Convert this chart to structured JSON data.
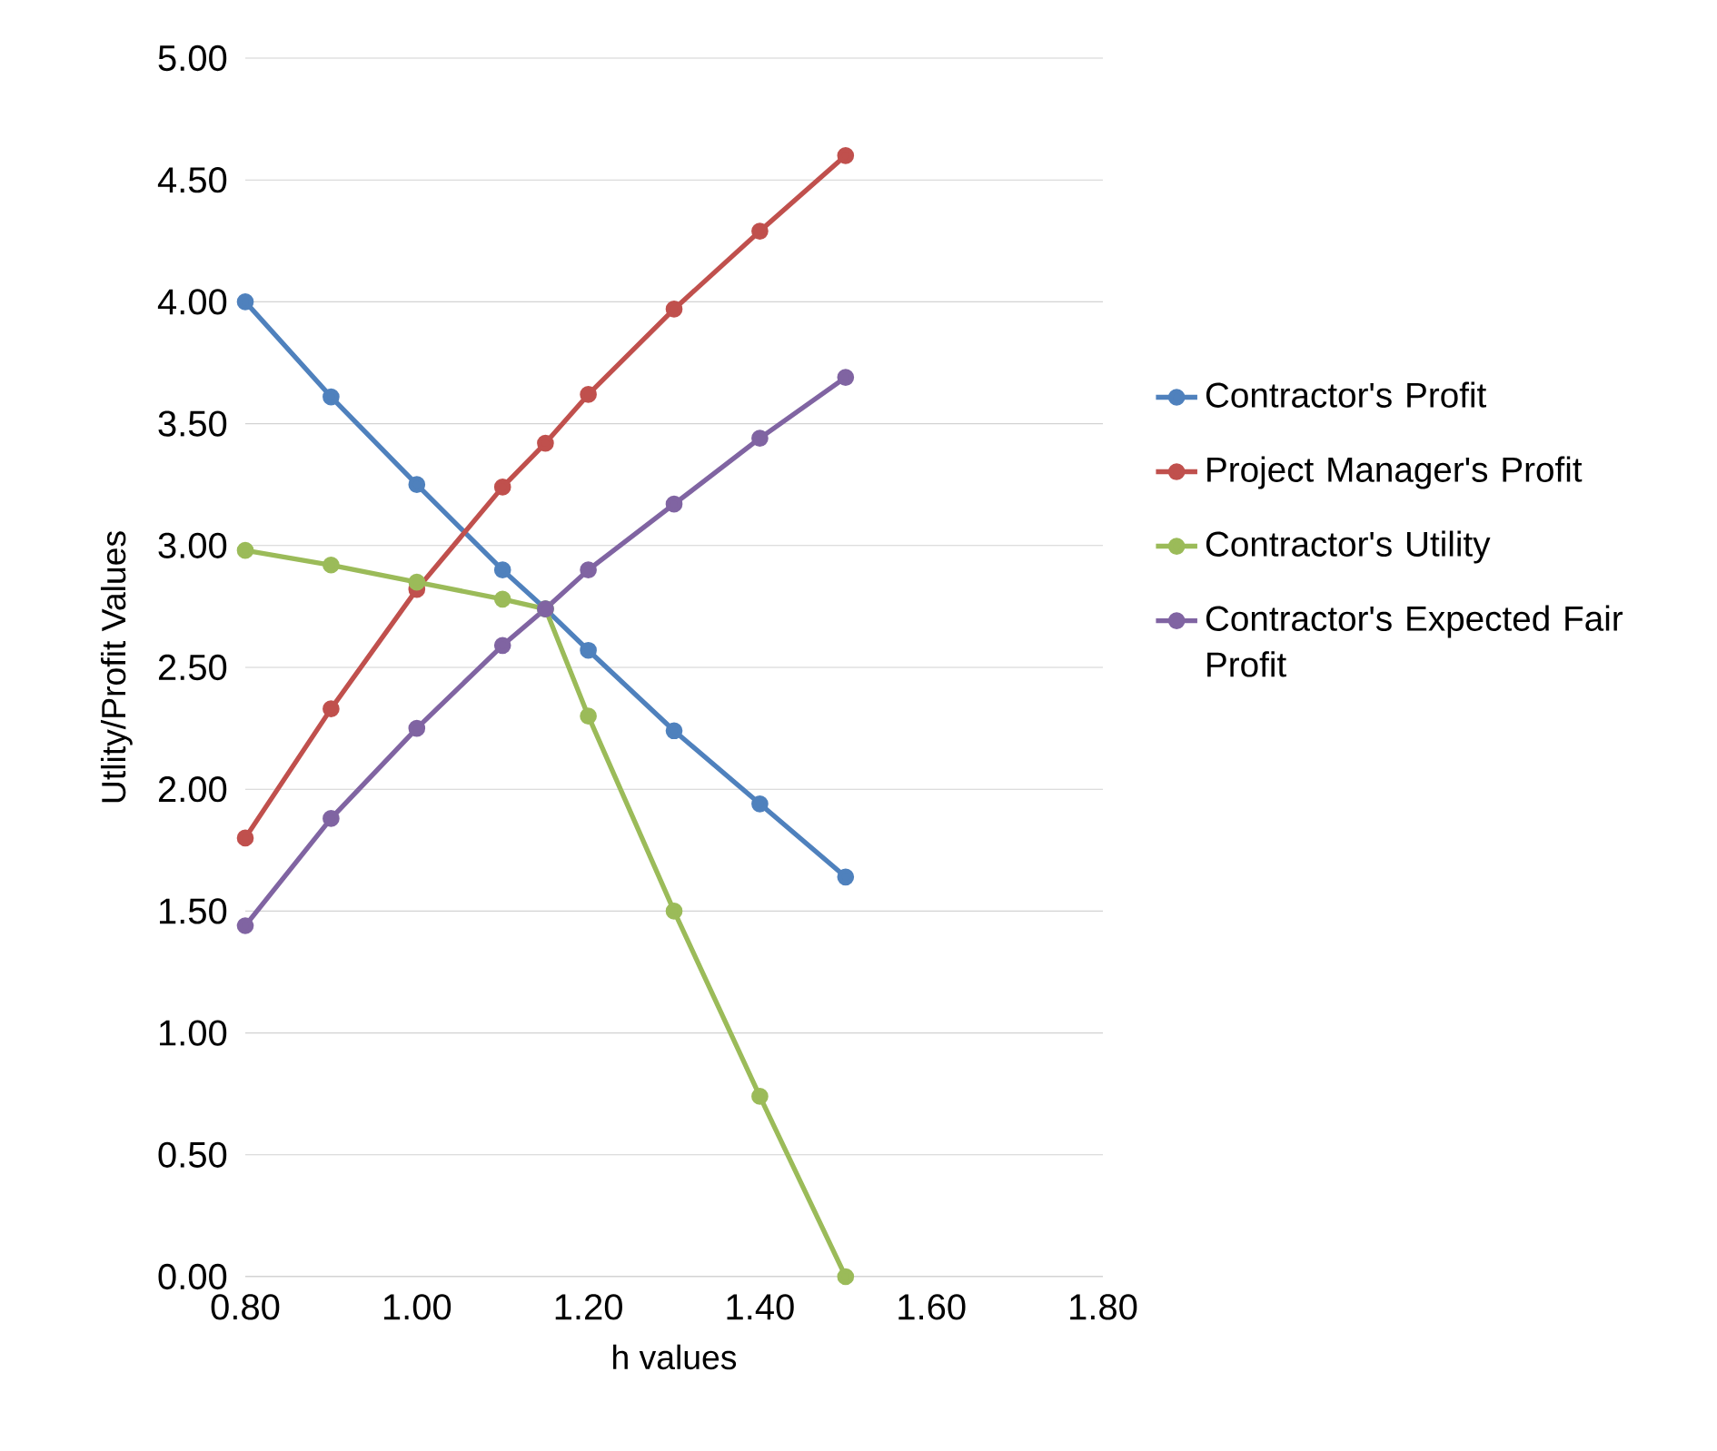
{
  "chart_data": {
    "type": "line",
    "xlabel": "h  values",
    "ylabel": "Utlity/Profit Values",
    "xlim": [
      0.8,
      1.8
    ],
    "ylim": [
      0,
      5
    ],
    "xticks": [
      {
        "value": 0.8,
        "label": "0.80"
      },
      {
        "value": 1.0,
        "label": "1.00"
      },
      {
        "value": 1.2,
        "label": "1.20"
      },
      {
        "value": 1.4,
        "label": "1.40"
      },
      {
        "value": 1.6,
        "label": "1.60"
      },
      {
        "value": 1.8,
        "label": "1.80"
      }
    ],
    "yticks": [
      {
        "value": 0,
        "label": "0.00"
      },
      {
        "value": 0.5,
        "label": "0.50"
      },
      {
        "value": 1,
        "label": "1.00"
      },
      {
        "value": 1.5,
        "label": "1.50"
      },
      {
        "value": 2,
        "label": "2.00"
      },
      {
        "value": 2.5,
        "label": "2.50"
      },
      {
        "value": 3,
        "label": "3.00"
      },
      {
        "value": 3.5,
        "label": "3.50"
      },
      {
        "value": 4,
        "label": "4.00"
      },
      {
        "value": 4.5,
        "label": "4.50"
      },
      {
        "value": 5,
        "label": "5.00"
      }
    ],
    "x": [
      0.8,
      0.9,
      1.0,
      1.1,
      1.15,
      1.2,
      1.3,
      1.4,
      1.5
    ],
    "series": [
      {
        "name": "Contractor's Profit",
        "color": "#4f81bd",
        "values": [
          4.0,
          3.61,
          3.25,
          2.9,
          2.74,
          2.57,
          2.24,
          1.94,
          1.64
        ]
      },
      {
        "name": "Project Manager's Profit",
        "color": "#c0504d",
        "values": [
          1.8,
          2.33,
          2.82,
          3.24,
          3.42,
          3.62,
          3.97,
          4.29,
          4.6
        ]
      },
      {
        "name": "Contractor's Utility",
        "color": "#9bbb59",
        "values": [
          2.98,
          2.92,
          2.85,
          2.78,
          2.74,
          2.3,
          1.5,
          0.74,
          0.0
        ]
      },
      {
        "name": "Contractor's Expected Fair Profit",
        "color": "#8064a2",
        "values": [
          1.44,
          1.88,
          2.25,
          2.59,
          2.74,
          2.9,
          3.17,
          3.44,
          3.69
        ]
      }
    ],
    "grid": "y",
    "legend": "right",
    "marker": "circle",
    "line_style": "solid"
  }
}
